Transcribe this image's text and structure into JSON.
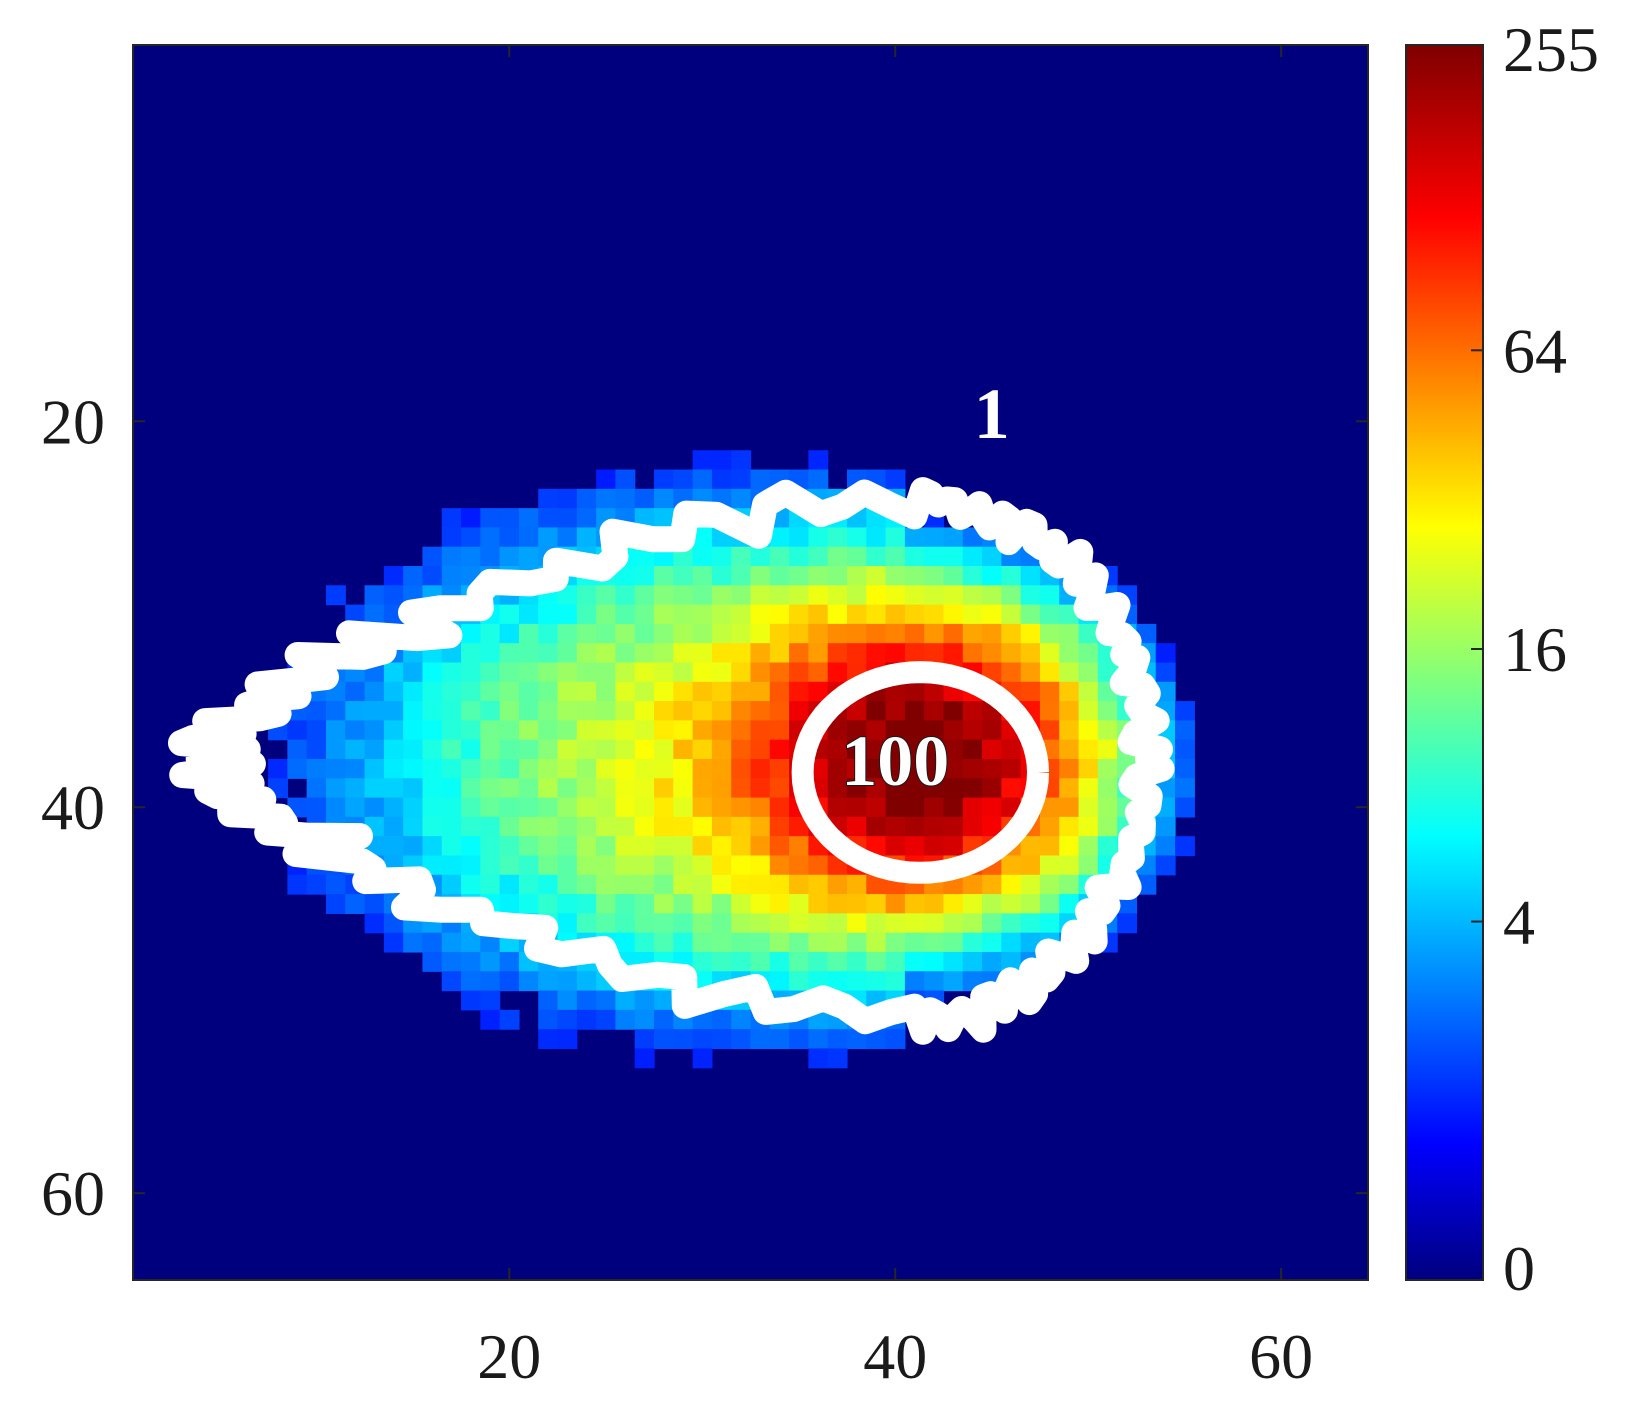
{
  "chart_data": {
    "type": "heatmap",
    "title": "",
    "xlabel": "",
    "ylabel": "",
    "grid_size": [
      64,
      64
    ],
    "xlim": [
      0.5,
      64.5
    ],
    "ylim": [
      0.5,
      64.5
    ],
    "y_reversed": true,
    "x_ticks": [
      20,
      40,
      60
    ],
    "y_ticks": [
      20,
      40,
      60
    ],
    "x_tick_labels": [
      "20",
      "40",
      "60"
    ],
    "y_tick_labels": [
      "20",
      "40",
      "60"
    ],
    "background_value": 0,
    "colormap": "jet",
    "colormap_colors": [
      "#00007f",
      "#0000ff",
      "#00ffff",
      "#ffff00",
      "#ff0000",
      "#7f0000"
    ],
    "colorbar": {
      "scale": "log",
      "range": [
        0,
        255
      ],
      "ticks": [
        0,
        4,
        16,
        64,
        255
      ],
      "tick_labels": [
        "0",
        "4",
        "16",
        "64",
        "255"
      ],
      "placement": "right"
    },
    "blob": {
      "peak_value": 255,
      "peak_center": [
        41,
        37.5
      ],
      "extent_x": [
        5,
        53
      ],
      "extent_y": [
        24,
        51
      ]
    },
    "contours": [
      {
        "level": 1,
        "label": "1",
        "label_position": [
          45,
          20
        ]
      },
      {
        "level": 100,
        "label": "100",
        "label_position": [
          40,
          38
        ]
      }
    ]
  }
}
